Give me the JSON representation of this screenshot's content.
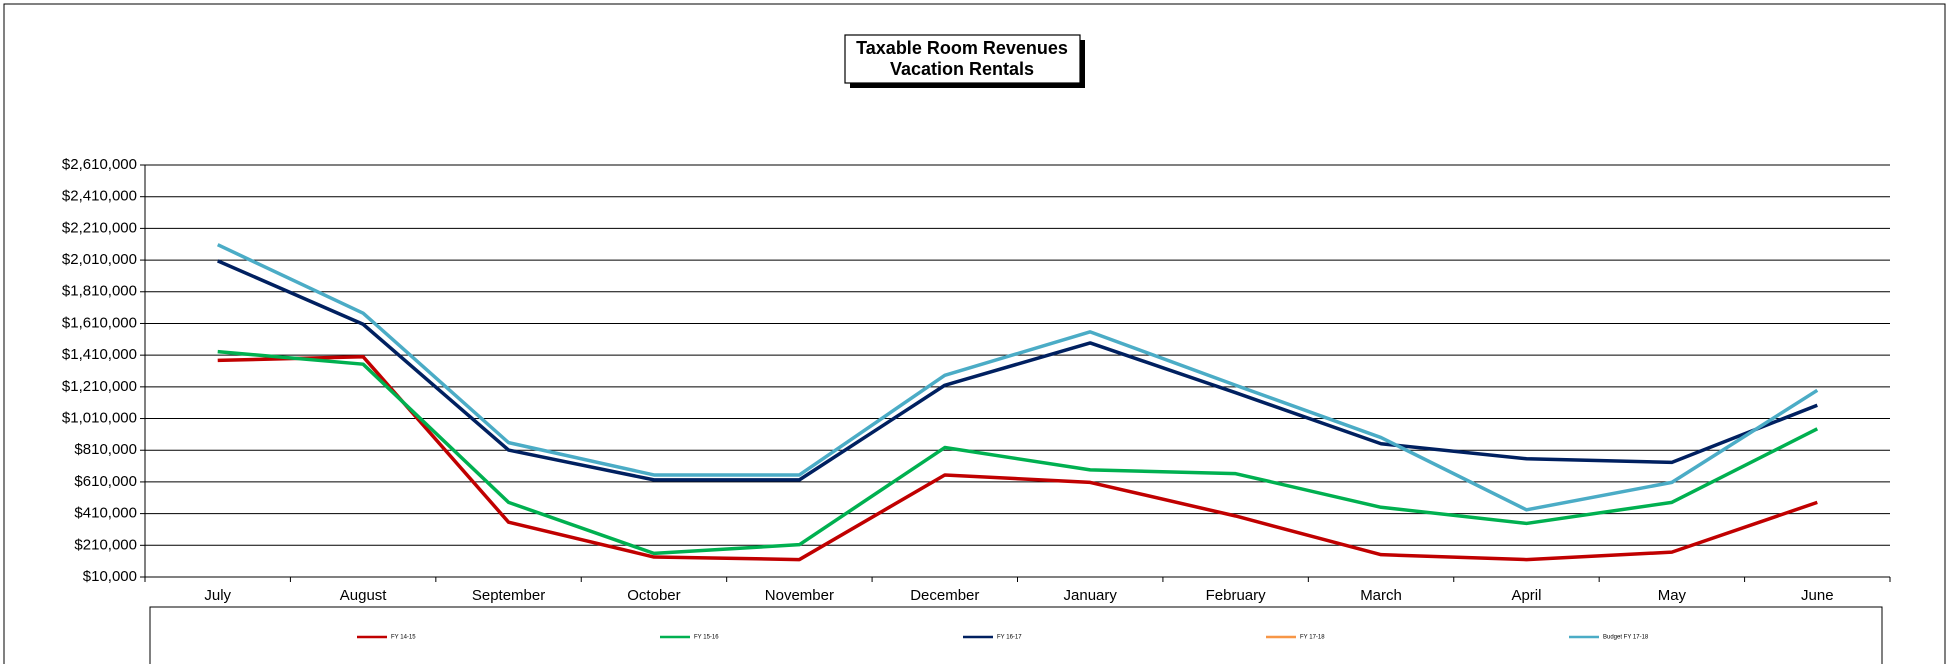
{
  "chart_data": {
    "type": "line",
    "title": "Taxable Room Revenues",
    "subtitle": "Vacation Rentals",
    "categories": [
      "July",
      "August",
      "September",
      "October",
      "November",
      "December",
      "January",
      "February",
      "March",
      "April",
      "May",
      "June"
    ],
    "series": [
      {
        "name": "FY 14-15",
        "color": "#c00000",
        "values": [
          1377000,
          1400000,
          356000,
          136000,
          120000,
          654000,
          607000,
          395000,
          151000,
          120000,
          167000,
          481000
        ]
      },
      {
        "name": "FY 15-16",
        "color": "#00b050",
        "values": [
          1432000,
          1353000,
          481000,
          159000,
          214000,
          827000,
          686000,
          662000,
          450000,
          348000,
          481000,
          945000
        ]
      },
      {
        "name": "FY 16-17",
        "color": "#002060",
        "values": [
          2005000,
          1605000,
          811000,
          623000,
          623000,
          1220000,
          1487000,
          1173000,
          851000,
          756000,
          733000,
          1094000
        ]
      },
      {
        "name": "FY 17-18",
        "color": "#f79646",
        "values": [
          null,
          null,
          null,
          null,
          null,
          null,
          null,
          null,
          null,
          null,
          null,
          null
        ]
      },
      {
        "name": "Budget FY 17-18",
        "color": "#4bacc6",
        "values": [
          2107000,
          1675000,
          858000,
          654000,
          654000,
          1283000,
          1557000,
          1220000,
          890000,
          434000,
          607000,
          1188000
        ]
      }
    ],
    "ylim": [
      10000,
      2610000
    ],
    "yticks": [
      {
        "value": 10000,
        "label": "$10,000"
      },
      {
        "value": 210000,
        "label": "$210,000"
      },
      {
        "value": 410000,
        "label": "$410,000"
      },
      {
        "value": 610000,
        "label": "$610,000"
      },
      {
        "value": 810000,
        "label": "$810,000"
      },
      {
        "value": 1010000,
        "label": "$1,010,000"
      },
      {
        "value": 1210000,
        "label": "$1,210,000"
      },
      {
        "value": 1410000,
        "label": "$1,410,000"
      },
      {
        "value": 1610000,
        "label": "$1,610,000"
      },
      {
        "value": 1810000,
        "label": "$1,810,000"
      },
      {
        "value": 2010000,
        "label": "$2,010,000"
      },
      {
        "value": 2210000,
        "label": "$2,210,000"
      },
      {
        "value": 2410000,
        "label": "$2,410,000"
      },
      {
        "value": 2610000,
        "label": "$2,610,000"
      }
    ],
    "grid": true,
    "legend": "bottom"
  }
}
